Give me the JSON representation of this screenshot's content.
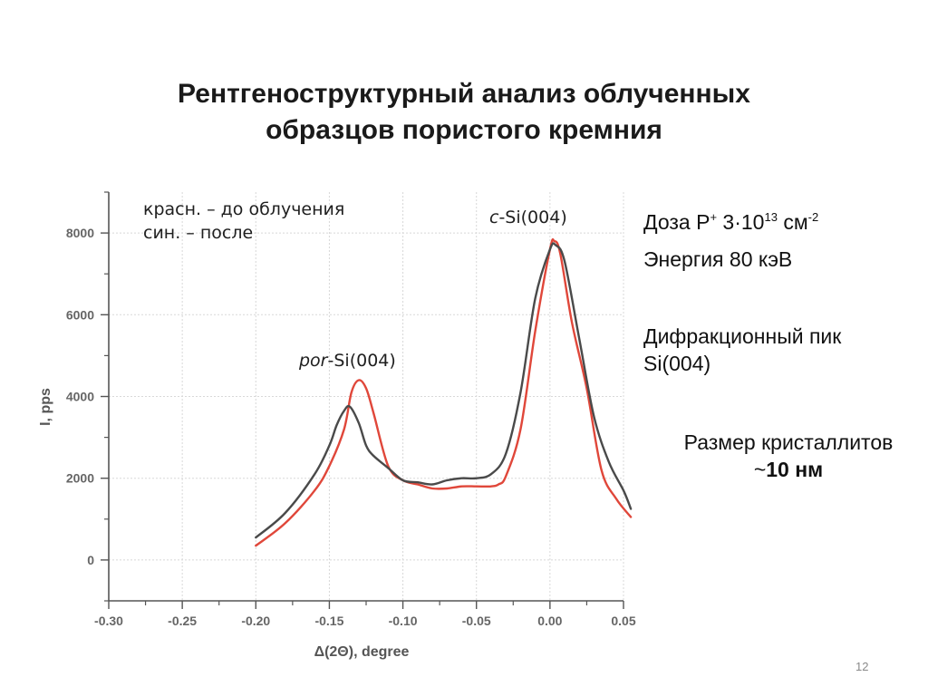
{
  "slide": {
    "title_line1": "Рентгеноструктурный анализ облученных",
    "title_line2": "образцов пористого кремния",
    "page_number": "12"
  },
  "annotations": {
    "legend_red": "красн. – до облучения",
    "legend_blue": "син. – после",
    "peak_c_prefix": "c",
    "peak_c_suffix": "-Si(004)",
    "peak_por_prefix": "por",
    "peak_por_suffix": "-Si(004)"
  },
  "info": {
    "dose_label": "Доза P",
    "dose_ion_sup": "+",
    "dose_value": "3·10",
    "dose_exp": "13",
    "dose_unit": "см",
    "dose_unit_exp": "-2",
    "energy": "Энергия 80 кэВ",
    "peak_line1": "Дифракционный пик",
    "peak_line2": "Si(004)",
    "crystal_label": "Размер кристаллитов",
    "crystal_tilde": "~",
    "crystal_size": "10 нм"
  },
  "chart_data": {
    "type": "line",
    "title": "",
    "xlabel": "Δ(2Θ), degree",
    "ylabel": "I, pps",
    "xlim": [
      -0.3,
      0.05
    ],
    "ylim": [
      -1000,
      9000
    ],
    "xticks": [
      -0.3,
      -0.25,
      -0.2,
      -0.15,
      -0.1,
      -0.05,
      0.0,
      0.05
    ],
    "xtick_labels": [
      "-0.30",
      "-0.25",
      "-0.20",
      "-0.15",
      "-0.10",
      "-0.05",
      "0.00",
      "0.05"
    ],
    "yticks": [
      0,
      2000,
      4000,
      6000,
      8000
    ],
    "ytick_labels": [
      "0",
      "2000",
      "4000",
      "6000",
      "8000"
    ],
    "grid": true,
    "series": [
      {
        "color": "#e0473a",
        "x": [
          -0.2,
          -0.18,
          -0.16,
          -0.15,
          -0.14,
          -0.135,
          -0.13,
          -0.125,
          -0.12,
          -0.11,
          -0.1,
          -0.09,
          -0.08,
          -0.07,
          -0.06,
          -0.05,
          -0.04,
          -0.035,
          -0.03,
          -0.02,
          -0.01,
          0,
          0.003,
          0.007,
          0.015,
          0.025,
          0.035,
          0.045,
          0.055
        ],
        "y": [
          350,
          900,
          1700,
          2300,
          3200,
          4100,
          4400,
          4200,
          3600,
          2300,
          1950,
          1850,
          1750,
          1750,
          1800,
          1800,
          1800,
          1850,
          2050,
          3200,
          5600,
          7600,
          7800,
          7500,
          5800,
          4200,
          2200,
          1500,
          1050
        ]
      },
      {
        "color": "#4a4a4a",
        "x": [
          -0.2,
          -0.18,
          -0.16,
          -0.15,
          -0.145,
          -0.14,
          -0.136,
          -0.13,
          -0.125,
          -0.12,
          -0.11,
          -0.1,
          -0.09,
          -0.08,
          -0.07,
          -0.06,
          -0.05,
          -0.04,
          -0.03,
          -0.02,
          -0.01,
          0,
          0.004,
          0.01,
          0.02,
          0.03,
          0.04,
          0.05,
          0.055
        ],
        "y": [
          550,
          1150,
          2100,
          2800,
          3300,
          3650,
          3750,
          3350,
          2800,
          2550,
          2250,
          1950,
          1900,
          1850,
          1950,
          2000,
          2000,
          2100,
          2600,
          4100,
          6400,
          7600,
          7700,
          7300,
          5400,
          3500,
          2400,
          1700,
          1250
        ]
      }
    ]
  }
}
